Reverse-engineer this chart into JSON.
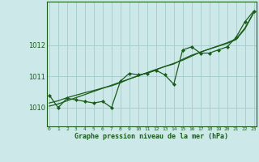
{
  "title": "Graphe pression niveau de la mer (hPa)",
  "bg_color": "#cce8e8",
  "grid_color": "#aacece",
  "line_color": "#1a5c1a",
  "x_labels": [
    "0",
    "1",
    "2",
    "3",
    "4",
    "5",
    "6",
    "7",
    "8",
    "9",
    "10",
    "11",
    "12",
    "13",
    "14",
    "15",
    "16",
    "17",
    "18",
    "19",
    "20",
    "21",
    "22",
    "23"
  ],
  "y_ticks": [
    1010,
    1011,
    1012
  ],
  "ylim": [
    1009.4,
    1013.4
  ],
  "xlim": [
    -0.3,
    23.3
  ],
  "data_y": [
    1010.4,
    1010.0,
    1010.3,
    1010.25,
    1010.2,
    1010.15,
    1010.2,
    1010.0,
    1010.85,
    1011.1,
    1011.05,
    1011.1,
    1011.2,
    1011.05,
    1010.75,
    1011.85,
    1011.95,
    1011.75,
    1011.75,
    1011.85,
    1011.95,
    1012.25,
    1012.75,
    1013.1
  ],
  "trend1_y": [
    1010.05,
    1010.12,
    1010.22,
    1010.32,
    1010.42,
    1010.52,
    1010.62,
    1010.72,
    1010.82,
    1010.92,
    1011.02,
    1011.12,
    1011.22,
    1011.32,
    1011.42,
    1011.52,
    1011.65,
    1011.78,
    1011.88,
    1011.98,
    1012.08,
    1012.2,
    1012.55,
    1013.05
  ],
  "trend2_y": [
    1010.15,
    1010.22,
    1010.32,
    1010.4,
    1010.48,
    1010.55,
    1010.63,
    1010.7,
    1010.8,
    1010.92,
    1011.02,
    1011.12,
    1011.22,
    1011.32,
    1011.4,
    1011.55,
    1011.68,
    1011.78,
    1011.88,
    1011.97,
    1012.06,
    1012.18,
    1012.52,
    1013.05
  ]
}
